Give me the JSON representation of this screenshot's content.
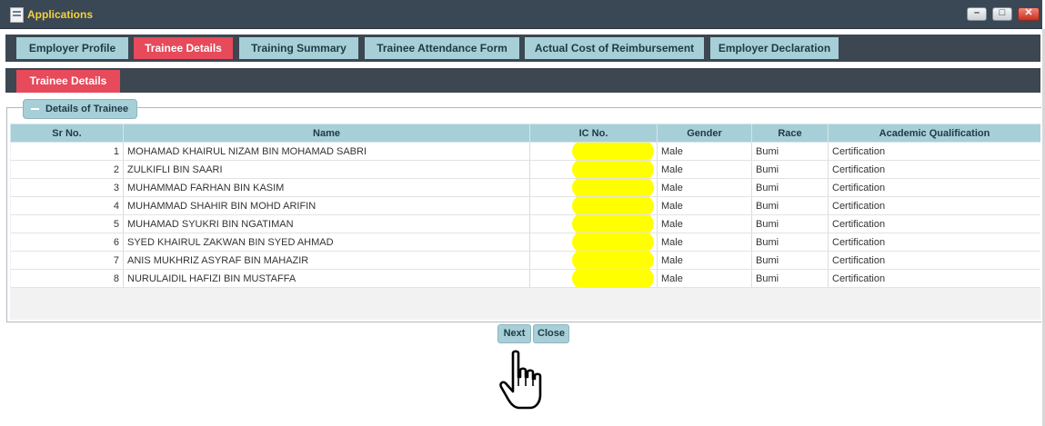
{
  "window": {
    "title": "Applications"
  },
  "tabs": [
    {
      "label": "Employer Profile",
      "active": false
    },
    {
      "label": "Trainee Details",
      "active": true
    },
    {
      "label": "Training Summary",
      "active": false
    },
    {
      "label": "Trainee Attendance Form",
      "active": false
    },
    {
      "label": "Actual Cost of Reimbursement",
      "active": false
    },
    {
      "label": "Employer Declaration",
      "active": false
    }
  ],
  "subtab": {
    "label": "Trainee Details"
  },
  "section": {
    "legend": "Details of Trainee"
  },
  "table": {
    "columns": [
      "Sr No.",
      "Name",
      "IC No.",
      "Gender",
      "Race",
      "Academic Qualification"
    ],
    "rows": [
      {
        "sr": "1",
        "name": "MOHAMAD KHAIRUL NIZAM BIN MOHAMAD SABRI",
        "ic": "",
        "gender": "Male",
        "race": "Bumi",
        "qualification": "Certification"
      },
      {
        "sr": "2",
        "name": "ZULKIFLI BIN SAARI",
        "ic": "",
        "gender": "Male",
        "race": "Bumi",
        "qualification": "Certification"
      },
      {
        "sr": "3",
        "name": "MUHAMMAD FARHAN BIN KASIM",
        "ic": "",
        "gender": "Male",
        "race": "Bumi",
        "qualification": "Certification"
      },
      {
        "sr": "4",
        "name": "MUHAMMAD SHAHIR BIN MOHD ARIFIN",
        "ic": "",
        "gender": "Male",
        "race": "Bumi",
        "qualification": "Certification"
      },
      {
        "sr": "5",
        "name": "MUHAMAD SYUKRI BIN NGATIMAN",
        "ic": "",
        "gender": "Male",
        "race": "Bumi",
        "qualification": "Certification"
      },
      {
        "sr": "6",
        "name": "SYED KHAIRUL ZAKWAN BIN SYED AHMAD",
        "ic": "",
        "gender": "Male",
        "race": "Bumi",
        "qualification": "Certification"
      },
      {
        "sr": "7",
        "name": "ANIS MUKHRIZ ASYRAF BIN MAHAZIR",
        "ic": "",
        "gender": "Male",
        "race": "Bumi",
        "qualification": "Certification"
      },
      {
        "sr": "8",
        "name": "NURULAIDIL HAFIZI BIN MUSTAFFA",
        "ic": "",
        "gender": "Male",
        "race": "Bumi",
        "qualification": "Certification"
      }
    ]
  },
  "buttons": {
    "next": "Next",
    "close": "Close"
  },
  "icons": {
    "app": "applications-icon",
    "collapse": "minus-icon",
    "cursor": "hand-pointer-icon"
  },
  "colors": {
    "accent": "#e64a5b",
    "tab": "#a7cfd7",
    "bar": "#3d4752",
    "redaction": "#ffff00"
  }
}
